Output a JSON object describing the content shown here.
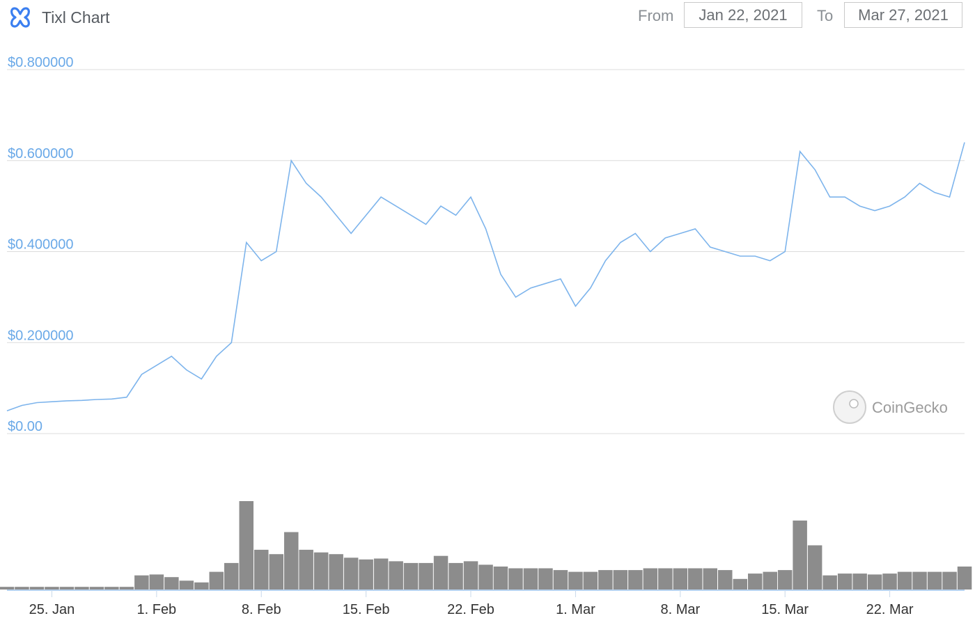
{
  "header": {
    "title": "Tixl Chart",
    "from_label": "From",
    "from_value": "Jan 22, 2021",
    "to_label": "To",
    "to_value": "Mar 27, 2021"
  },
  "watermark": "CoinGecko",
  "colors": {
    "price_line": "#7db4ec",
    "volume": "#8c8c8c",
    "grid": "#dcdcdc",
    "y_axis_text": "#6aa9e8",
    "logo": "#3b7ff0"
  },
  "chart_data": {
    "type": "line",
    "x_range": [
      "2021-01-22",
      "2021-03-27"
    ],
    "y_ticks": [
      "$0.800000",
      "$0.600000",
      "$0.400000",
      "$0.200000",
      "$0.00"
    ],
    "y_tick_values": [
      0.8,
      0.6,
      0.4,
      0.2,
      0.0
    ],
    "ylim": [
      0,
      0.8
    ],
    "x_ticks": [
      "25. Jan",
      "1. Feb",
      "8. Feb",
      "15. Feb",
      "22. Feb",
      "1. Mar",
      "8. Mar",
      "15. Mar",
      "22. Mar"
    ],
    "x_tick_dates": [
      "2021-01-25",
      "2021-02-01",
      "2021-02-08",
      "2021-02-15",
      "2021-02-22",
      "2021-03-01",
      "2021-03-08",
      "2021-03-15",
      "2021-03-22"
    ],
    "grid": true,
    "legend": "none",
    "series": [
      {
        "kind": "price",
        "points": [
          [
            "2021-01-22",
            0.05
          ],
          [
            "2021-01-23",
            0.062
          ],
          [
            "2021-01-24",
            0.068
          ],
          [
            "2021-01-25",
            0.07
          ],
          [
            "2021-01-26",
            0.072
          ],
          [
            "2021-01-27",
            0.073
          ],
          [
            "2021-01-28",
            0.075
          ],
          [
            "2021-01-29",
            0.076
          ],
          [
            "2021-01-30",
            0.08
          ],
          [
            "2021-01-31",
            0.13
          ],
          [
            "2021-02-01",
            0.15
          ],
          [
            "2021-02-02",
            0.17
          ],
          [
            "2021-02-03",
            0.14
          ],
          [
            "2021-02-04",
            0.12
          ],
          [
            "2021-02-05",
            0.17
          ],
          [
            "2021-02-06",
            0.2
          ],
          [
            "2021-02-07",
            0.42
          ],
          [
            "2021-02-08",
            0.38
          ],
          [
            "2021-02-09",
            0.4
          ],
          [
            "2021-02-10",
            0.6
          ],
          [
            "2021-02-11",
            0.55
          ],
          [
            "2021-02-12",
            0.52
          ],
          [
            "2021-02-13",
            0.48
          ],
          [
            "2021-02-14",
            0.44
          ],
          [
            "2021-02-15",
            0.48
          ],
          [
            "2021-02-16",
            0.52
          ],
          [
            "2021-02-17",
            0.5
          ],
          [
            "2021-02-18",
            0.48
          ],
          [
            "2021-02-19",
            0.46
          ],
          [
            "2021-02-20",
            0.5
          ],
          [
            "2021-02-21",
            0.48
          ],
          [
            "2021-02-22",
            0.52
          ],
          [
            "2021-02-23",
            0.45
          ],
          [
            "2021-02-24",
            0.35
          ],
          [
            "2021-02-25",
            0.3
          ],
          [
            "2021-02-26",
            0.32
          ],
          [
            "2021-02-27",
            0.33
          ],
          [
            "2021-02-28",
            0.34
          ],
          [
            "2021-03-01",
            0.28
          ],
          [
            "2021-03-02",
            0.32
          ],
          [
            "2021-03-03",
            0.38
          ],
          [
            "2021-03-04",
            0.42
          ],
          [
            "2021-03-05",
            0.44
          ],
          [
            "2021-03-06",
            0.4
          ],
          [
            "2021-03-07",
            0.43
          ],
          [
            "2021-03-08",
            0.44
          ],
          [
            "2021-03-09",
            0.45
          ],
          [
            "2021-03-10",
            0.41
          ],
          [
            "2021-03-11",
            0.4
          ],
          [
            "2021-03-12",
            0.39
          ],
          [
            "2021-03-13",
            0.39
          ],
          [
            "2021-03-14",
            0.38
          ],
          [
            "2021-03-15",
            0.4
          ],
          [
            "2021-03-16",
            0.62
          ],
          [
            "2021-03-17",
            0.58
          ],
          [
            "2021-03-18",
            0.52
          ],
          [
            "2021-03-19",
            0.52
          ],
          [
            "2021-03-20",
            0.5
          ],
          [
            "2021-03-21",
            0.49
          ],
          [
            "2021-03-22",
            0.5
          ],
          [
            "2021-03-23",
            0.52
          ],
          [
            "2021-03-24",
            0.55
          ],
          [
            "2021-03-25",
            0.53
          ],
          [
            "2021-03-26",
            0.52
          ],
          [
            "2021-03-27",
            0.64
          ]
        ]
      },
      {
        "kind": "volume",
        "points": [
          [
            "2021-01-22",
            0.03
          ],
          [
            "2021-01-23",
            0.03
          ],
          [
            "2021-01-24",
            0.03
          ],
          [
            "2021-01-25",
            0.03
          ],
          [
            "2021-01-26",
            0.03
          ],
          [
            "2021-01-27",
            0.03
          ],
          [
            "2021-01-28",
            0.03
          ],
          [
            "2021-01-29",
            0.03
          ],
          [
            "2021-01-30",
            0.03
          ],
          [
            "2021-01-31",
            0.16
          ],
          [
            "2021-02-01",
            0.17
          ],
          [
            "2021-02-02",
            0.14
          ],
          [
            "2021-02-03",
            0.1
          ],
          [
            "2021-02-04",
            0.08
          ],
          [
            "2021-02-05",
            0.2
          ],
          [
            "2021-02-06",
            0.3
          ],
          [
            "2021-02-07",
            1.0
          ],
          [
            "2021-02-08",
            0.45
          ],
          [
            "2021-02-09",
            0.4
          ],
          [
            "2021-02-10",
            0.65
          ],
          [
            "2021-02-11",
            0.45
          ],
          [
            "2021-02-12",
            0.42
          ],
          [
            "2021-02-13",
            0.4
          ],
          [
            "2021-02-14",
            0.36
          ],
          [
            "2021-02-15",
            0.34
          ],
          [
            "2021-02-16",
            0.35
          ],
          [
            "2021-02-17",
            0.32
          ],
          [
            "2021-02-18",
            0.3
          ],
          [
            "2021-02-19",
            0.3
          ],
          [
            "2021-02-20",
            0.38
          ],
          [
            "2021-02-21",
            0.3
          ],
          [
            "2021-02-22",
            0.32
          ],
          [
            "2021-02-23",
            0.28
          ],
          [
            "2021-02-24",
            0.26
          ],
          [
            "2021-02-25",
            0.24
          ],
          [
            "2021-02-26",
            0.24
          ],
          [
            "2021-02-27",
            0.24
          ],
          [
            "2021-02-28",
            0.22
          ],
          [
            "2021-03-01",
            0.2
          ],
          [
            "2021-03-02",
            0.2
          ],
          [
            "2021-03-03",
            0.22
          ],
          [
            "2021-03-04",
            0.22
          ],
          [
            "2021-03-05",
            0.22
          ],
          [
            "2021-03-06",
            0.24
          ],
          [
            "2021-03-07",
            0.24
          ],
          [
            "2021-03-08",
            0.24
          ],
          [
            "2021-03-09",
            0.24
          ],
          [
            "2021-03-10",
            0.24
          ],
          [
            "2021-03-11",
            0.22
          ],
          [
            "2021-03-12",
            0.12
          ],
          [
            "2021-03-13",
            0.18
          ],
          [
            "2021-03-14",
            0.2
          ],
          [
            "2021-03-15",
            0.22
          ],
          [
            "2021-03-16",
            0.78
          ],
          [
            "2021-03-17",
            0.5
          ],
          [
            "2021-03-18",
            0.16
          ],
          [
            "2021-03-19",
            0.18
          ],
          [
            "2021-03-20",
            0.18
          ],
          [
            "2021-03-21",
            0.17
          ],
          [
            "2021-03-22",
            0.18
          ],
          [
            "2021-03-23",
            0.2
          ],
          [
            "2021-03-24",
            0.2
          ],
          [
            "2021-03-25",
            0.2
          ],
          [
            "2021-03-26",
            0.2
          ],
          [
            "2021-03-27",
            0.26
          ]
        ]
      }
    ]
  }
}
